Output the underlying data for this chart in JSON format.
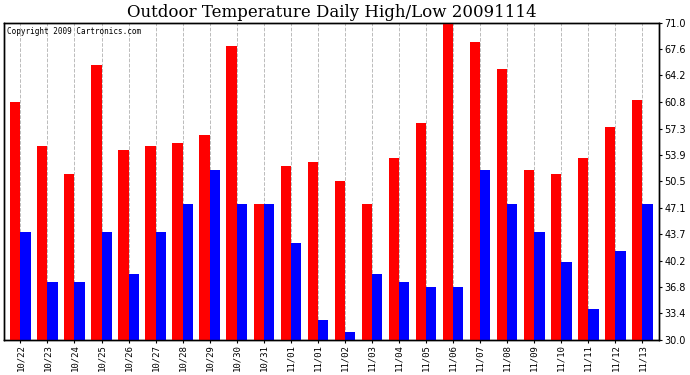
{
  "title": "Outdoor Temperature Daily High/Low 20091114",
  "copyright": "Copyright 2009 Cartronics.com",
  "categories": [
    "10/22",
    "10/23",
    "10/24",
    "10/25",
    "10/26",
    "10/27",
    "10/28",
    "10/29",
    "10/30",
    "10/31",
    "11/01",
    "11/01",
    "11/02",
    "11/03",
    "11/04",
    "11/05",
    "11/06",
    "11/07",
    "11/08",
    "11/09",
    "11/10",
    "11/11",
    "11/12",
    "11/13"
  ],
  "highs": [
    60.8,
    55.0,
    51.5,
    65.5,
    54.5,
    55.0,
    55.5,
    56.5,
    68.0,
    47.5,
    52.5,
    53.0,
    50.5,
    47.5,
    53.5,
    58.0,
    71.0,
    68.5,
    65.0,
    52.0,
    51.5,
    53.5,
    57.5,
    61.0
  ],
  "lows": [
    44.0,
    37.5,
    37.5,
    44.0,
    38.5,
    44.0,
    47.5,
    52.0,
    47.5,
    47.5,
    42.5,
    32.5,
    31.0,
    38.5,
    37.5,
    36.8,
    36.8,
    52.0,
    47.5,
    44.0,
    40.0,
    34.0,
    41.5,
    47.5
  ],
  "bar_color_high": "#ff0000",
  "bar_color_low": "#0000ff",
  "background_color": "#ffffff",
  "plot_bg_color": "#ffffff",
  "grid_color": "#aaaaaa",
  "title_fontsize": 12,
  "ylim": [
    30.0,
    71.0
  ],
  "yticks": [
    30.0,
    33.4,
    36.8,
    40.2,
    43.7,
    47.1,
    50.5,
    53.9,
    57.3,
    60.8,
    64.2,
    67.6,
    71.0
  ],
  "bar_bottom": 30.0
}
